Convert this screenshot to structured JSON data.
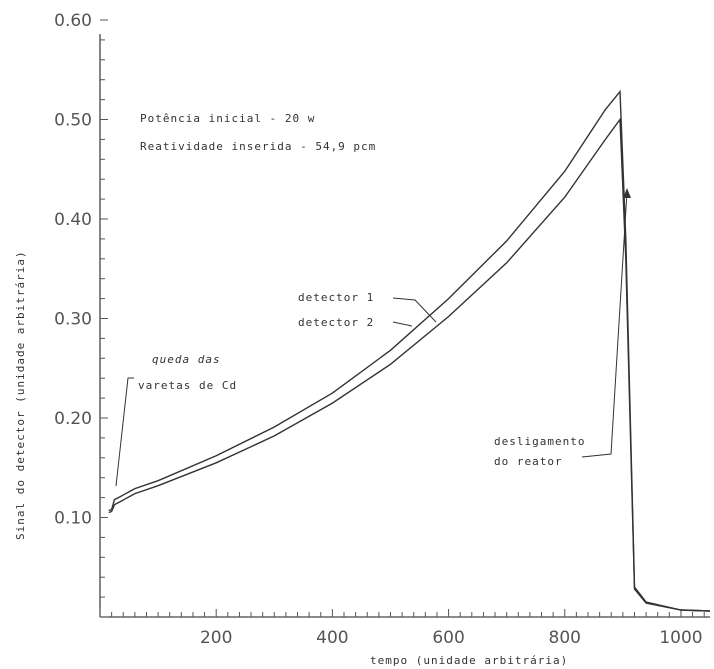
{
  "chart_data": {
    "type": "line",
    "title": "",
    "xlabel": "tempo (unidade arbitrária)",
    "ylabel": "Sinal do detector (unidade arbitrária)",
    "xlim": [
      0,
      1050
    ],
    "ylim": [
      0,
      0.6
    ],
    "x_ticks": [
      200,
      400,
      600,
      800,
      1000
    ],
    "x_tick_labels": [
      "200",
      "400",
      "600",
      "800",
      "1000"
    ],
    "y_ticks": [
      0.1,
      0.2,
      0.3,
      0.4,
      0.5,
      0.6
    ],
    "y_tick_labels": [
      "0.10",
      "0.20",
      "0.30",
      "0.40",
      "0.50",
      "0.60"
    ],
    "grid": false,
    "annotations": {
      "potencia": "Potência inicial - 20 w",
      "reatividade": "Reatividade inserida - 54,9 pcm",
      "queda_line1": "queda das",
      "queda_line2": "varetas de Cd",
      "detector1": "detector 1",
      "detector2": "detector 2",
      "desligamento_line1": "desligamento",
      "desligamento_line2": "do reator"
    },
    "series": [
      {
        "name": "detector 1",
        "x": [
          15,
          20,
          25,
          35,
          60,
          100,
          200,
          300,
          400,
          500,
          600,
          700,
          800,
          870,
          895,
          905,
          920,
          940,
          1000,
          1050
        ],
        "y": [
          0.107,
          0.108,
          0.118,
          0.121,
          0.129,
          0.137,
          0.162,
          0.191,
          0.225,
          0.268,
          0.32,
          0.378,
          0.448,
          0.51,
          0.528,
          0.38,
          0.03,
          0.015,
          0.007,
          0.006
        ]
      },
      {
        "name": "detector 2",
        "x": [
          15,
          20,
          25,
          35,
          60,
          100,
          200,
          300,
          400,
          500,
          600,
          700,
          800,
          870,
          895,
          905,
          920,
          940,
          1000,
          1050
        ],
        "y": [
          0.105,
          0.106,
          0.113,
          0.116,
          0.124,
          0.132,
          0.155,
          0.182,
          0.215,
          0.254,
          0.302,
          0.356,
          0.422,
          0.48,
          0.5,
          0.36,
          0.028,
          0.014,
          0.007,
          0.006
        ]
      }
    ]
  }
}
